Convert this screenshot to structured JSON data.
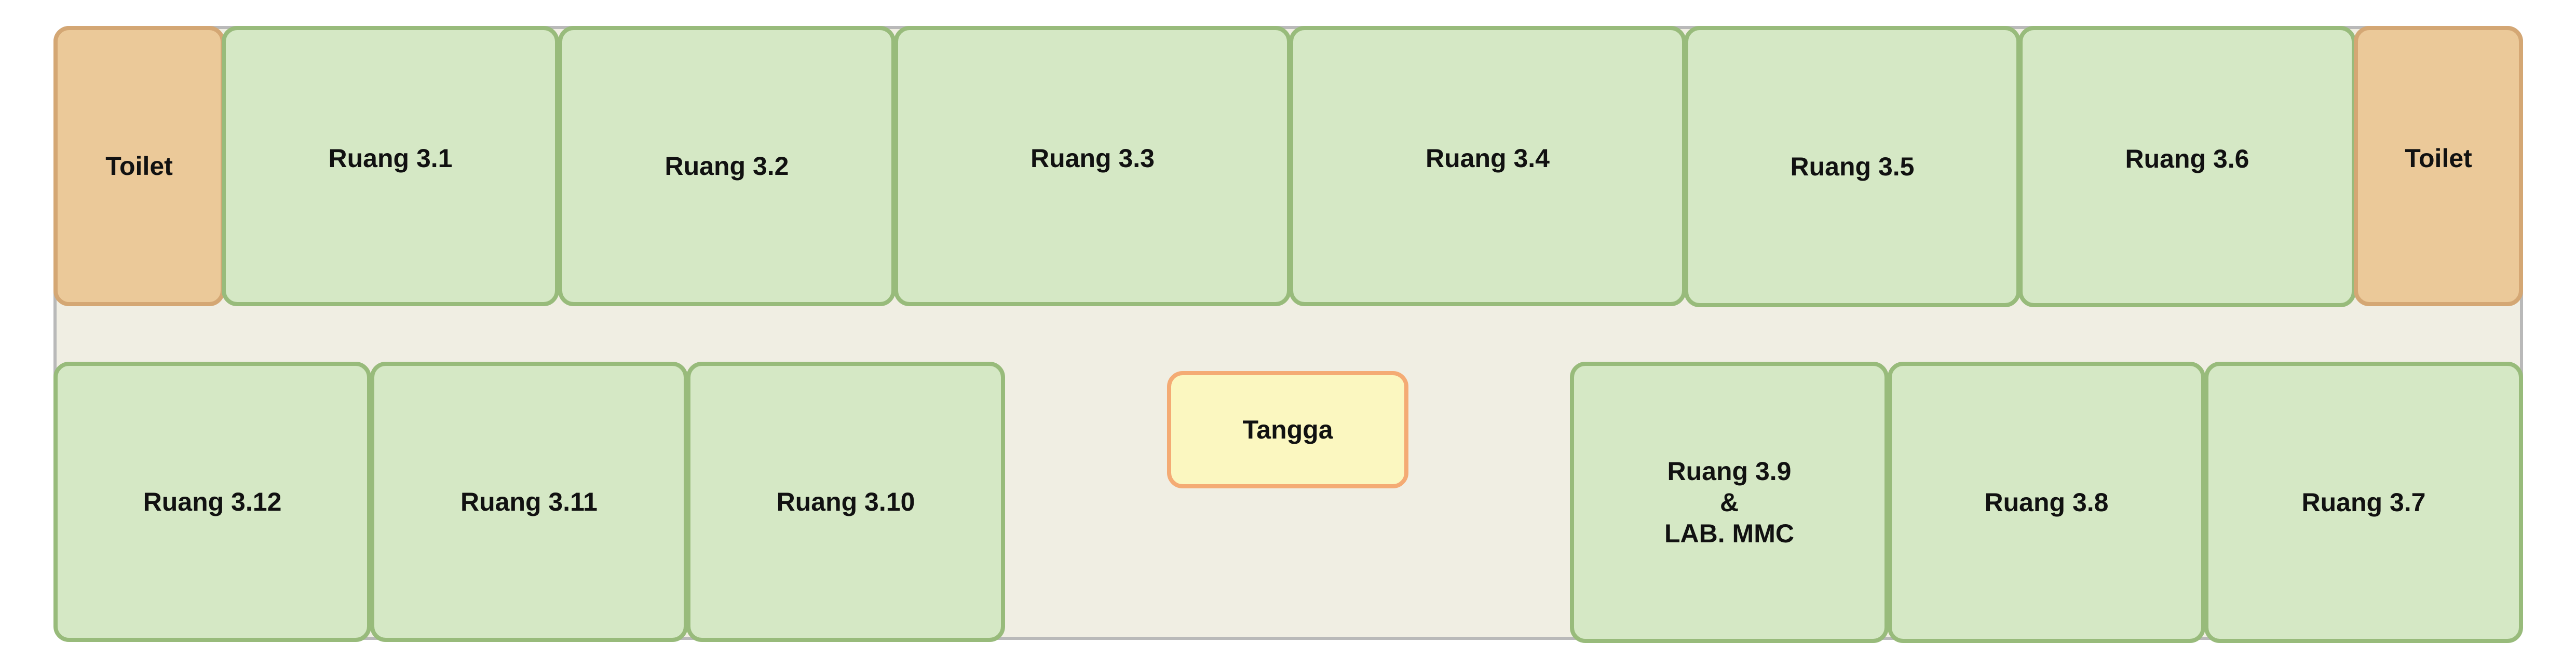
{
  "floor_plan": {
    "top_row": {
      "toilet_left": "Toilet",
      "room_3_1": "Ruang 3.1",
      "room_3_2": "Ruang 3.2",
      "room_3_3": "Ruang 3.3",
      "room_3_4": "Ruang 3.4",
      "room_3_5": "Ruang 3.5",
      "room_3_6": "Ruang 3.6",
      "toilet_right": "Toilet"
    },
    "bottom_row": {
      "room_3_12": "Ruang 3.12",
      "room_3_11": "Ruang 3.11",
      "room_3_10": "Ruang 3.10",
      "stairs": "Tangga",
      "room_3_9": "Ruang 3.9\n&\nLAB. MMC",
      "room_3_8": "Ruang 3.8",
      "room_3_7": "Ruang 3.7"
    },
    "colors": {
      "room_fill": "#d5e8c5",
      "room_border": "#98bb7b",
      "toilet_fill": "#ebc999",
      "toilet_border": "#d4a774",
      "stairs_fill": "#fbf7c0",
      "stairs_border": "#f4ab74",
      "corridor_fill": "#f0eee3",
      "outline": "#b9b9b9"
    }
  }
}
